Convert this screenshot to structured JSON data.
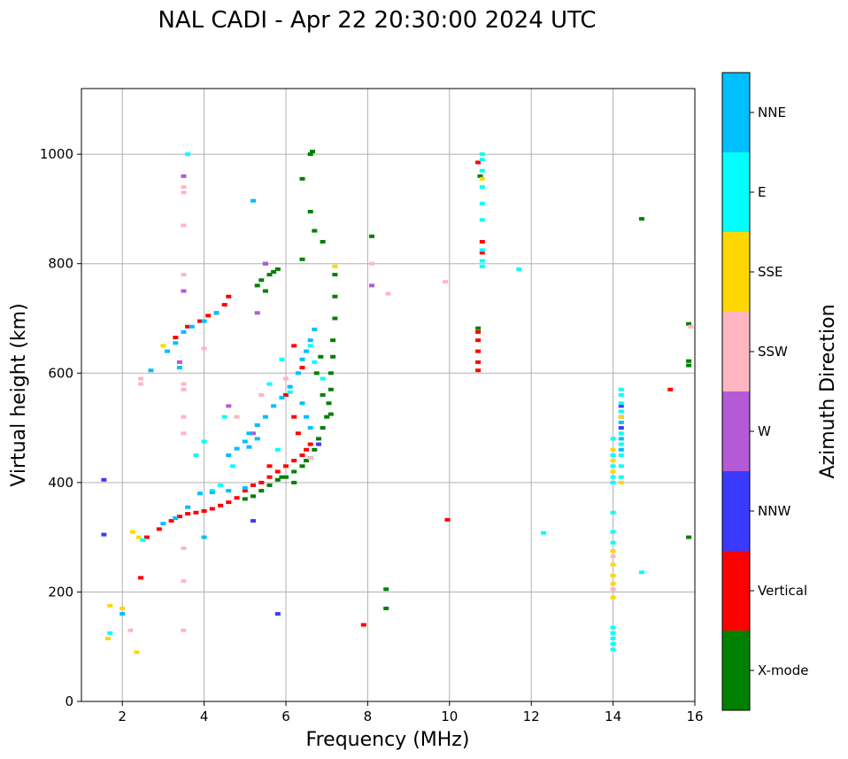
{
  "chart_data": {
    "type": "scatter",
    "title": "NAL CADI - Apr 22 20:30:00 2024 UTC",
    "xlabel": "Frequency (MHz)",
    "ylabel": "Virtual height (km)",
    "xlim": [
      1,
      16
    ],
    "ylim": [
      0,
      1120
    ],
    "xticks": [
      2,
      4,
      6,
      8,
      10,
      12,
      14,
      16
    ],
    "yticks": [
      0,
      200,
      400,
      600,
      800,
      1000
    ],
    "grid": true,
    "colorbar": {
      "label": "Azimuth Direction",
      "position": "right",
      "categories": [
        {
          "name": "X-mode",
          "color": "#008000"
        },
        {
          "name": "Vertical",
          "color": "#ff0000"
        },
        {
          "name": "NNW",
          "color": "#3a3aff"
        },
        {
          "name": "W",
          "color": "#b45ad6"
        },
        {
          "name": "SSW",
          "color": "#ffb6c1"
        },
        {
          "name": "SSE",
          "color": "#ffd700"
        },
        {
          "name": "E",
          "color": "#00ffff"
        },
        {
          "name": "NNE",
          "color": "#00bfff"
        }
      ]
    },
    "series": [
      {
        "name": "X-mode",
        "points": [
          [
            5.0,
            370
          ],
          [
            5.2,
            375
          ],
          [
            5.4,
            385
          ],
          [
            5.6,
            395
          ],
          [
            5.8,
            405
          ],
          [
            6.0,
            410
          ],
          [
            6.2,
            420
          ],
          [
            6.4,
            430
          ],
          [
            6.6,
            445
          ],
          [
            6.7,
            460
          ],
          [
            6.8,
            480
          ],
          [
            6.9,
            500
          ],
          [
            7.0,
            520
          ],
          [
            7.05,
            545
          ],
          [
            7.1,
            570
          ],
          [
            7.1,
            600
          ],
          [
            7.15,
            630
          ],
          [
            7.15,
            660
          ],
          [
            7.2,
            700
          ],
          [
            7.2,
            740
          ],
          [
            7.2,
            780
          ],
          [
            5.5,
            800
          ],
          [
            5.6,
            780
          ],
          [
            5.4,
            770
          ],
          [
            5.7,
            785
          ],
          [
            5.3,
            760
          ],
          [
            5.5,
            750
          ],
          [
            5.8,
            790
          ],
          [
            6.6,
            1000
          ],
          [
            6.65,
            1005
          ],
          [
            6.4,
            955
          ],
          [
            6.6,
            895
          ],
          [
            6.7,
            860
          ],
          [
            6.9,
            840
          ],
          [
            6.4,
            808
          ],
          [
            8.1,
            850
          ],
          [
            8.45,
            205
          ],
          [
            8.45,
            170
          ],
          [
            15.85,
            690
          ],
          [
            15.85,
            622
          ],
          [
            15.85,
            614
          ],
          [
            15.85,
            300
          ],
          [
            14.7,
            882
          ],
          [
            10.7,
            682
          ],
          [
            10.75,
            960
          ],
          [
            6.75,
            600
          ],
          [
            6.85,
            630
          ],
          [
            6.9,
            560
          ],
          [
            7.1,
            525
          ],
          [
            6.5,
            440
          ],
          [
            6.2,
            400
          ],
          [
            5.9,
            410
          ]
        ]
      },
      {
        "name": "Vertical",
        "points": [
          [
            2.6,
            300
          ],
          [
            2.9,
            315
          ],
          [
            3.2,
            330
          ],
          [
            3.4,
            338
          ],
          [
            3.6,
            343
          ],
          [
            3.8,
            345
          ],
          [
            4.0,
            348
          ],
          [
            4.2,
            352
          ],
          [
            4.4,
            358
          ],
          [
            4.6,
            364
          ],
          [
            4.8,
            372
          ],
          [
            5.0,
            385
          ],
          [
            5.2,
            395
          ],
          [
            5.4,
            400
          ],
          [
            5.6,
            410
          ],
          [
            5.8,
            420
          ],
          [
            6.0,
            430
          ],
          [
            6.2,
            440
          ],
          [
            6.4,
            450
          ],
          [
            6.6,
            470
          ],
          [
            3.6,
            685
          ],
          [
            3.9,
            695
          ],
          [
            4.1,
            705
          ],
          [
            4.3,
            710
          ],
          [
            4.5,
            725
          ],
          [
            3.3,
            665
          ],
          [
            4.6,
            740
          ],
          [
            6.2,
            650
          ],
          [
            6.4,
            610
          ],
          [
            6.0,
            560
          ],
          [
            6.2,
            520
          ],
          [
            6.3,
            490
          ],
          [
            6.5,
            460
          ],
          [
            5.6,
            430
          ],
          [
            10.7,
            605
          ],
          [
            10.7,
            620
          ],
          [
            10.7,
            640
          ],
          [
            10.7,
            660
          ],
          [
            10.7,
            675
          ],
          [
            10.8,
            840
          ],
          [
            10.8,
            820
          ],
          [
            10.7,
            985
          ],
          [
            9.95,
            332
          ],
          [
            15.4,
            570
          ],
          [
            2.45,
            226
          ],
          [
            7.9,
            140
          ]
        ]
      },
      {
        "name": "NNW",
        "points": [
          [
            1.55,
            405
          ],
          [
            1.55,
            305
          ],
          [
            5.8,
            160
          ],
          [
            14.2,
            540
          ],
          [
            14.2,
            520
          ],
          [
            14.2,
            500
          ],
          [
            5.2,
            330
          ],
          [
            6.8,
            470
          ]
        ]
      },
      {
        "name": "W",
        "points": [
          [
            3.5,
            960
          ],
          [
            3.5,
            750
          ],
          [
            5.5,
            800
          ],
          [
            5.3,
            710
          ],
          [
            4.6,
            540
          ],
          [
            5.2,
            490
          ],
          [
            3.4,
            620
          ],
          [
            8.1,
            760
          ]
        ]
      },
      {
        "name": "SSW",
        "points": [
          [
            3.5,
            940
          ],
          [
            3.5,
            930
          ],
          [
            3.5,
            870
          ],
          [
            3.5,
            780
          ],
          [
            3.5,
            580
          ],
          [
            3.5,
            570
          ],
          [
            3.5,
            520
          ],
          [
            3.5,
            490
          ],
          [
            3.5,
            280
          ],
          [
            3.5,
            220
          ],
          [
            3.5,
            130
          ],
          [
            2.45,
            590
          ],
          [
            2.45,
            580
          ],
          [
            4.0,
            645
          ],
          [
            4.8,
            520
          ],
          [
            5.4,
            560
          ],
          [
            6.0,
            590
          ],
          [
            8.5,
            745
          ],
          [
            8.1,
            800
          ],
          [
            9.9,
            767
          ],
          [
            2.2,
            130
          ],
          [
            14.0,
            265
          ],
          [
            14.0,
            205
          ],
          [
            6.6,
            445
          ],
          [
            15.9,
            685
          ]
        ]
      },
      {
        "name": "SSE",
        "points": [
          [
            1.7,
            175
          ],
          [
            1.65,
            115
          ],
          [
            2.0,
            170
          ],
          [
            2.25,
            310
          ],
          [
            2.4,
            300
          ],
          [
            3.0,
            650
          ],
          [
            14.0,
            460
          ],
          [
            14.0,
            440
          ],
          [
            14.0,
            420
          ],
          [
            14.0,
            275
          ],
          [
            14.0,
            250
          ],
          [
            14.0,
            230
          ],
          [
            14.0,
            215
          ],
          [
            14.0,
            190
          ],
          [
            14.2,
            400
          ],
          [
            14.2,
            520
          ],
          [
            10.8,
            955
          ],
          [
            7.2,
            795
          ],
          [
            2.35,
            90
          ]
        ]
      },
      {
        "name": "E",
        "points": [
          [
            3.6,
            1000
          ],
          [
            4.0,
            475
          ],
          [
            4.5,
            520
          ],
          [
            4.7,
            430
          ],
          [
            5.6,
            580
          ],
          [
            5.8,
            460
          ],
          [
            5.9,
            625
          ],
          [
            6.1,
            565
          ],
          [
            6.6,
            650
          ],
          [
            6.7,
            620
          ],
          [
            6.9,
            590
          ],
          [
            14.0,
            480
          ],
          [
            14.0,
            450
          ],
          [
            14.0,
            430
          ],
          [
            14.0,
            410
          ],
          [
            14.0,
            400
          ],
          [
            14.2,
            570
          ],
          [
            14.2,
            560
          ],
          [
            14.2,
            545
          ],
          [
            14.2,
            530
          ],
          [
            14.2,
            490
          ],
          [
            14.2,
            470
          ],
          [
            14.2,
            450
          ],
          [
            14.2,
            430
          ],
          [
            14.2,
            410
          ],
          [
            14.0,
            345
          ],
          [
            14.0,
            310
          ],
          [
            14.0,
            290
          ],
          [
            14.0,
            135
          ],
          [
            14.0,
            125
          ],
          [
            14.0,
            115
          ],
          [
            14.0,
            105
          ],
          [
            14.0,
            95
          ],
          [
            10.8,
            1000
          ],
          [
            10.8,
            990
          ],
          [
            10.8,
            970
          ],
          [
            10.8,
            940
          ],
          [
            10.8,
            910
          ],
          [
            10.8,
            880
          ],
          [
            10.8,
            825
          ],
          [
            10.8,
            805
          ],
          [
            10.8,
            795
          ],
          [
            11.7,
            790
          ],
          [
            12.3,
            308
          ],
          [
            14.7,
            236
          ],
          [
            3.8,
            450
          ],
          [
            4.2,
            385
          ],
          [
            4.4,
            395
          ],
          [
            1.7,
            125
          ],
          [
            2.5,
            295
          ]
        ]
      },
      {
        "name": "NNE",
        "points": [
          [
            4.6,
            450
          ],
          [
            4.8,
            462
          ],
          [
            5.0,
            475
          ],
          [
            5.1,
            490
          ],
          [
            5.3,
            505
          ],
          [
            5.5,
            520
          ],
          [
            5.7,
            540
          ],
          [
            5.9,
            555
          ],
          [
            6.1,
            575
          ],
          [
            6.3,
            600
          ],
          [
            6.4,
            625
          ],
          [
            6.5,
            640
          ],
          [
            6.6,
            660
          ],
          [
            6.7,
            680
          ],
          [
            3.1,
            640
          ],
          [
            3.3,
            655
          ],
          [
            3.5,
            675
          ],
          [
            3.7,
            685
          ],
          [
            4.0,
            695
          ],
          [
            4.3,
            710
          ],
          [
            3.0,
            325
          ],
          [
            3.3,
            335
          ],
          [
            3.6,
            355
          ],
          [
            3.9,
            380
          ],
          [
            4.2,
            382
          ],
          [
            4.6,
            385
          ],
          [
            5.0,
            390
          ],
          [
            6.5,
            520
          ],
          [
            6.4,
            545
          ],
          [
            6.6,
            500
          ],
          [
            5.1,
            465
          ],
          [
            5.3,
            480
          ],
          [
            4.0,
            300
          ],
          [
            14.2,
            510
          ],
          [
            14.2,
            480
          ],
          [
            14.2,
            460
          ],
          [
            5.2,
            915
          ],
          [
            3.4,
            610
          ],
          [
            2.7,
            605
          ],
          [
            2.0,
            160
          ]
        ]
      }
    ]
  }
}
